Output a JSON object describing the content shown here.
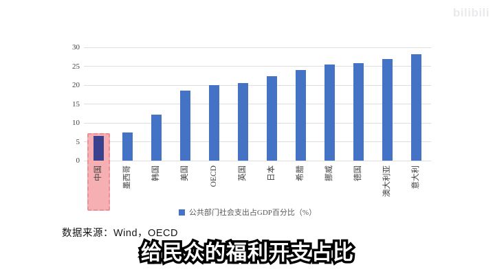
{
  "watermark": {
    "label": "bilibili"
  },
  "chart_data": {
    "type": "bar",
    "title": "",
    "categories": [
      "中国",
      "墨西哥",
      "韩国",
      "美国",
      "OECD",
      "英国",
      "日本",
      "希腊",
      "挪威",
      "德国",
      "澳大利亚",
      "意大利"
    ],
    "values": [
      6.5,
      7.5,
      12.1,
      18.6,
      20.0,
      20.6,
      22.3,
      24.0,
      25.4,
      25.9,
      27.0,
      28.2
    ],
    "ylim": [
      0,
      30
    ],
    "yticks": [
      0,
      5,
      10,
      15,
      20,
      25,
      30
    ],
    "grid": true,
    "legend_label": "公共部门社会支出占GDP百分比（%）",
    "legend_position": "bottom-center",
    "bar_color": "#4472c4",
    "grid_color": "#dedede",
    "axis_text_color": "#404040",
    "highlight": {
      "category": "中国",
      "index": 0,
      "bar_color": "#3a418f",
      "box_fill": "#f6b0b4",
      "box_border": "#ee8e96"
    }
  },
  "source_note": {
    "text": "数据来源：Wind，OECD"
  },
  "subtitle": {
    "text": "给民众的福利开支占比"
  }
}
